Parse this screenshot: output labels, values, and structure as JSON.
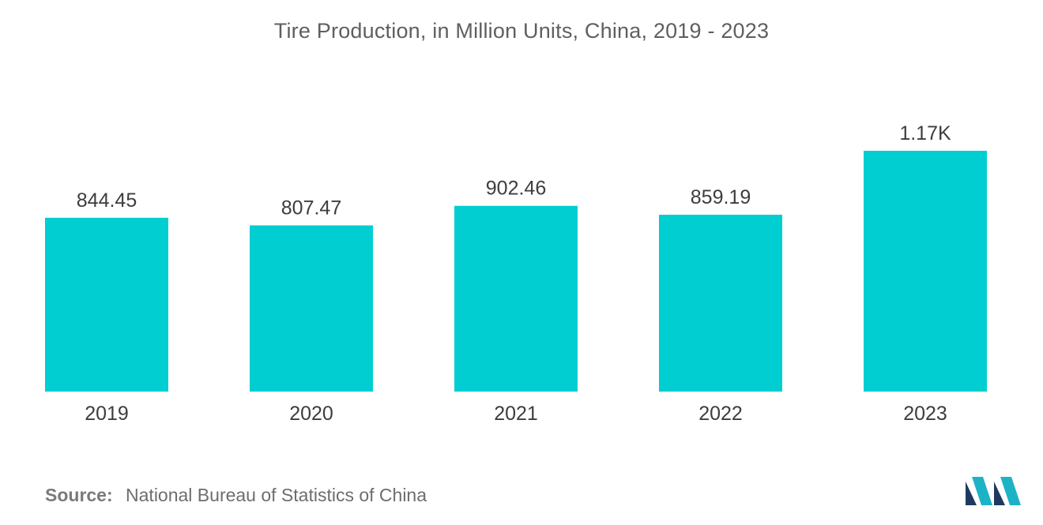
{
  "chart_data": {
    "type": "bar",
    "title": "Tire Production, in Million Units, China, 2019 - 2023",
    "categories": [
      "2019",
      "2020",
      "2021",
      "2022",
      "2023"
    ],
    "values": [
      844.45,
      807.47,
      902.46,
      859.19,
      1170
    ],
    "value_labels": [
      "844.45",
      "807.47",
      "902.46",
      "859.19",
      "1.17K"
    ],
    "xlabel": "",
    "ylabel": "",
    "ylim": [
      0,
      1170
    ],
    "grid": false,
    "legend": "none",
    "colors": {
      "bar": "#00CED1",
      "label_text": "#3d3d3d"
    }
  },
  "source": {
    "label": "Source:",
    "text": "National Bureau of Statistics of China"
  },
  "logo": {
    "icon": "mordor-intelligence-logo-icon",
    "colors": [
      "#1E3A5F",
      "#1DB3C6"
    ]
  }
}
